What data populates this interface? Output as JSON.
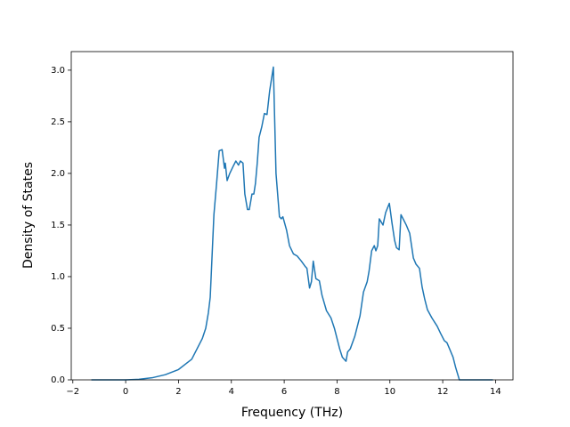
{
  "chart_data": {
    "type": "line",
    "xlabel": "Frequency (THz)",
    "ylabel": "Density of States",
    "color": "#1f77b4",
    "grid": false,
    "x": [
      -1.3,
      0,
      0.5,
      1.0,
      1.5,
      2.0,
      2.5,
      2.7,
      2.9,
      3.03,
      3.13,
      3.2,
      3.27,
      3.34,
      3.44,
      3.54,
      3.65,
      3.74,
      3.77,
      3.84,
      3.94,
      4.07,
      4.17,
      4.27,
      4.34,
      4.44,
      4.51,
      4.61,
      4.68,
      4.78,
      4.85,
      4.91,
      4.98,
      5.05,
      5.15,
      5.25,
      5.35,
      5.45,
      5.59,
      5.69,
      5.82,
      5.89,
      5.95,
      6.09,
      6.2,
      6.35,
      6.49,
      6.65,
      6.79,
      6.86,
      6.96,
      7.03,
      7.1,
      7.2,
      7.33,
      7.43,
      7.6,
      7.77,
      7.9,
      8.0,
      8.1,
      8.2,
      8.34,
      8.4,
      8.5,
      8.67,
      8.8,
      8.87,
      9.0,
      9.14,
      9.21,
      9.31,
      9.41,
      9.47,
      9.54,
      9.6,
      9.74,
      9.84,
      9.98,
      10.08,
      10.18,
      10.25,
      10.35,
      10.42,
      10.52,
      10.62,
      10.75,
      10.82,
      10.89,
      10.99,
      11.12,
      11.22,
      11.32,
      11.42,
      11.59,
      11.79,
      11.92,
      12.06,
      12.16,
      12.26,
      12.39,
      12.49,
      12.63,
      13.9
    ],
    "values": [
      0,
      0,
      0.005,
      0.02,
      0.05,
      0.1,
      0.2,
      0.3,
      0.4,
      0.5,
      0.65,
      0.8,
      1.2,
      1.6,
      1.9,
      2.22,
      2.23,
      2.05,
      2.1,
      1.93,
      2.0,
      2.07,
      2.12,
      2.08,
      2.12,
      2.1,
      1.8,
      1.65,
      1.65,
      1.8,
      1.8,
      1.9,
      2.1,
      2.35,
      2.45,
      2.58,
      2.57,
      2.8,
      3.03,
      2.0,
      1.58,
      1.56,
      1.58,
      1.45,
      1.3,
      1.22,
      1.2,
      1.15,
      1.1,
      1.08,
      0.89,
      0.95,
      1.15,
      0.98,
      0.96,
      0.82,
      0.67,
      0.6,
      0.5,
      0.4,
      0.3,
      0.22,
      0.18,
      0.27,
      0.3,
      0.42,
      0.55,
      0.62,
      0.85,
      0.95,
      1.05,
      1.25,
      1.3,
      1.25,
      1.3,
      1.56,
      1.5,
      1.62,
      1.71,
      1.52,
      1.35,
      1.28,
      1.26,
      1.6,
      1.55,
      1.5,
      1.42,
      1.3,
      1.18,
      1.12,
      1.08,
      0.9,
      0.78,
      0.68,
      0.6,
      0.52,
      0.45,
      0.38,
      0.36,
      0.3,
      0.22,
      0.12,
      0,
      0
    ],
    "xlim": [
      -2.06,
      14.66
    ],
    "ylim": [
      0,
      3.18
    ],
    "xticks": [
      {
        "value": -2,
        "label": "−2"
      },
      0,
      2,
      4,
      6,
      8,
      10,
      12,
      14
    ],
    "yticks": [
      {
        "value": 0,
        "label": "0.0"
      },
      {
        "value": 0.5,
        "label": "0.5"
      },
      {
        "value": 1,
        "label": "1.0"
      },
      {
        "value": 1.5,
        "label": "1.5"
      },
      {
        "value": 2,
        "label": "2.0"
      },
      {
        "value": 2.5,
        "label": "2.5"
      },
      {
        "value": 3,
        "label": "3.0"
      }
    ]
  }
}
